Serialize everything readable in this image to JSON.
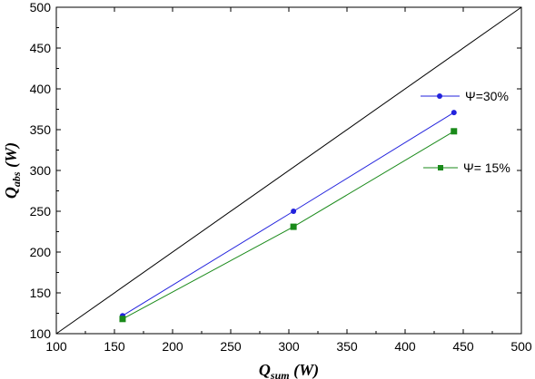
{
  "chart_data": {
    "type": "line",
    "xlabel": {
      "main": "Q",
      "sub": "sum",
      "unit": " (W)"
    },
    "ylabel": {
      "main": "Q",
      "sub": "abs",
      "unit": " (W)"
    },
    "xlim": [
      100,
      500
    ],
    "ylim": [
      100,
      500
    ],
    "xticks": [
      100,
      150,
      200,
      250,
      300,
      350,
      400,
      450,
      500
    ],
    "yticks": [
      100,
      150,
      200,
      250,
      300,
      350,
      400,
      450,
      500
    ],
    "grid": false,
    "reference_line": {
      "from": [
        100,
        100
      ],
      "to": [
        500,
        500
      ],
      "color": "#000000"
    },
    "series": [
      {
        "name": "Ψ=30%",
        "color": "#2222dd",
        "marker": "circle",
        "x": [
          157,
          304,
          442
        ],
        "y": [
          122,
          250,
          371
        ]
      },
      {
        "name": "Ψ= 15%",
        "color": "#1a8a1a",
        "marker": "square",
        "x": [
          157,
          304,
          442
        ],
        "y": [
          118,
          231,
          348
        ]
      }
    ],
    "legend_placement": "right"
  }
}
